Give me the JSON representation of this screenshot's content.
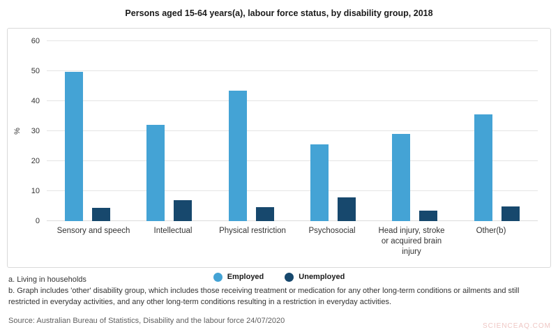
{
  "title": "Persons aged 15-64 years(a), labour force status, by disability group, 2018",
  "chart_data": {
    "type": "bar",
    "categories": [
      "Sensory and speech",
      "Intellectual",
      "Physical restriction",
      "Psychosocial",
      "Head injury, stroke or acquired brain injury",
      "Other(b)"
    ],
    "series": [
      {
        "name": "Employed",
        "color": "#44a3d5",
        "values": [
          49.8,
          32.0,
          43.6,
          25.7,
          29.0,
          35.7
        ]
      },
      {
        "name": "Unemployed",
        "color": "#17486d",
        "values": [
          4.5,
          6.9,
          4.6,
          7.9,
          3.4,
          5.0
        ]
      }
    ],
    "ylabel": "%",
    "ylim": [
      0,
      60
    ],
    "yticks": [
      0,
      10,
      20,
      30,
      40,
      50,
      60
    ],
    "grid": true,
    "legend_position": "bottom"
  },
  "footnotes": [
    "a. Living in households",
    "b. Graph includes 'other' disability group, which includes those receiving treatment or medication for any other long-term conditions or ailments and still restricted in everyday activities, and any other long-term conditions resulting in a restriction in everyday activities."
  ],
  "source": "Source: Australian Bureau of Statistics, Disability and the labour force 24/07/2020",
  "watermark": "SCIENCEAQ.COM"
}
